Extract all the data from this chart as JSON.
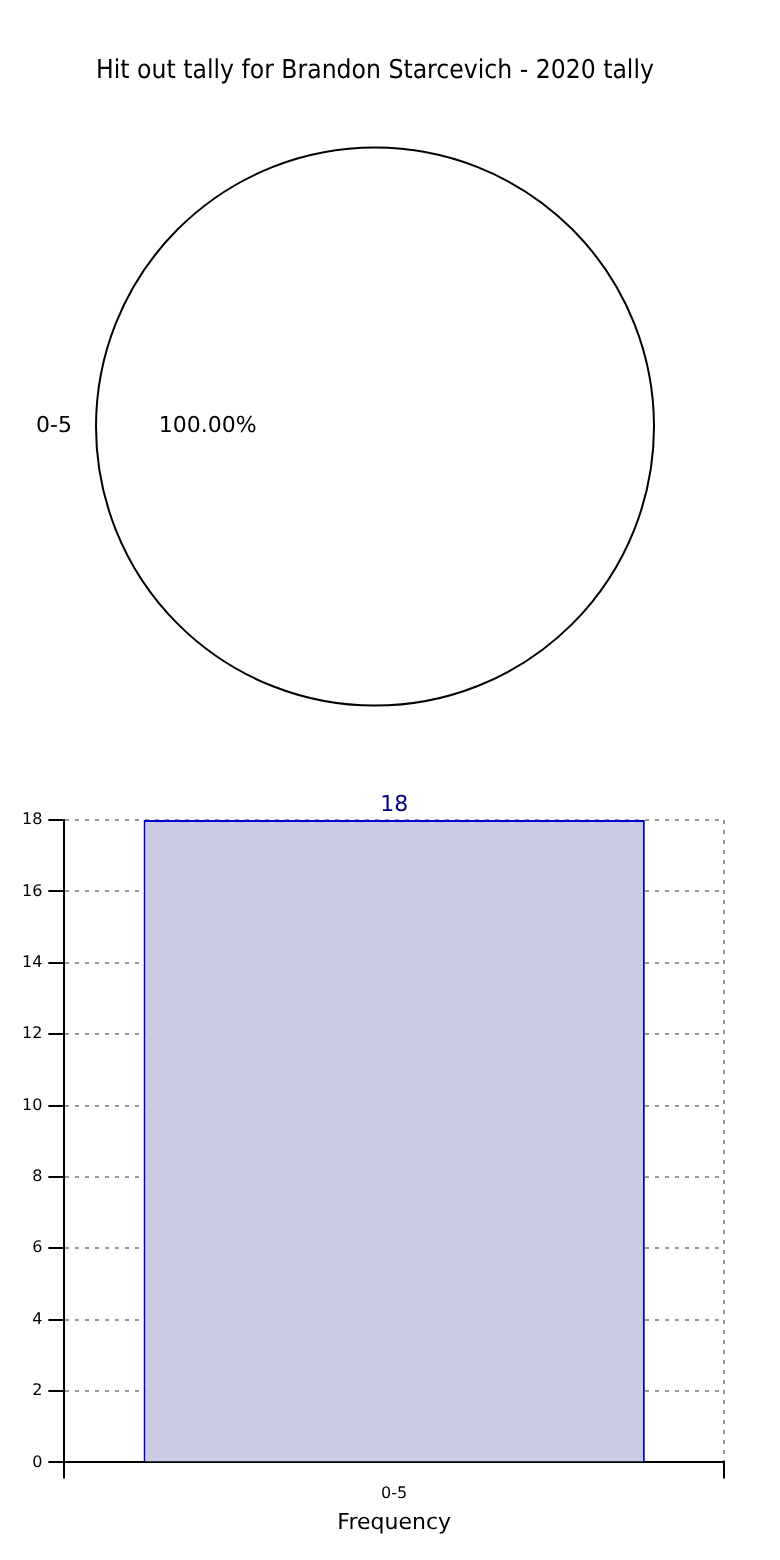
{
  "chart_data": [
    {
      "type": "pie",
      "title": "Hit out tally for Brandon Starcevich - 2020 tally",
      "categories": [
        "0-5"
      ],
      "values": [
        100
      ],
      "colors": [
        "#ffffff"
      ],
      "value_labels": [
        "100.00%"
      ],
      "legend": false
    },
    {
      "type": "bar",
      "categories": [
        "0-5"
      ],
      "values": [
        18
      ],
      "color": "#cbcbe5",
      "xlabel": "Frequency",
      "ylim": [
        0,
        18
      ],
      "yticks": [
        0,
        2,
        4,
        6,
        8,
        10,
        12,
        14,
        16,
        18
      ],
      "grid": true,
      "data_labels": true,
      "legend": false
    }
  ]
}
